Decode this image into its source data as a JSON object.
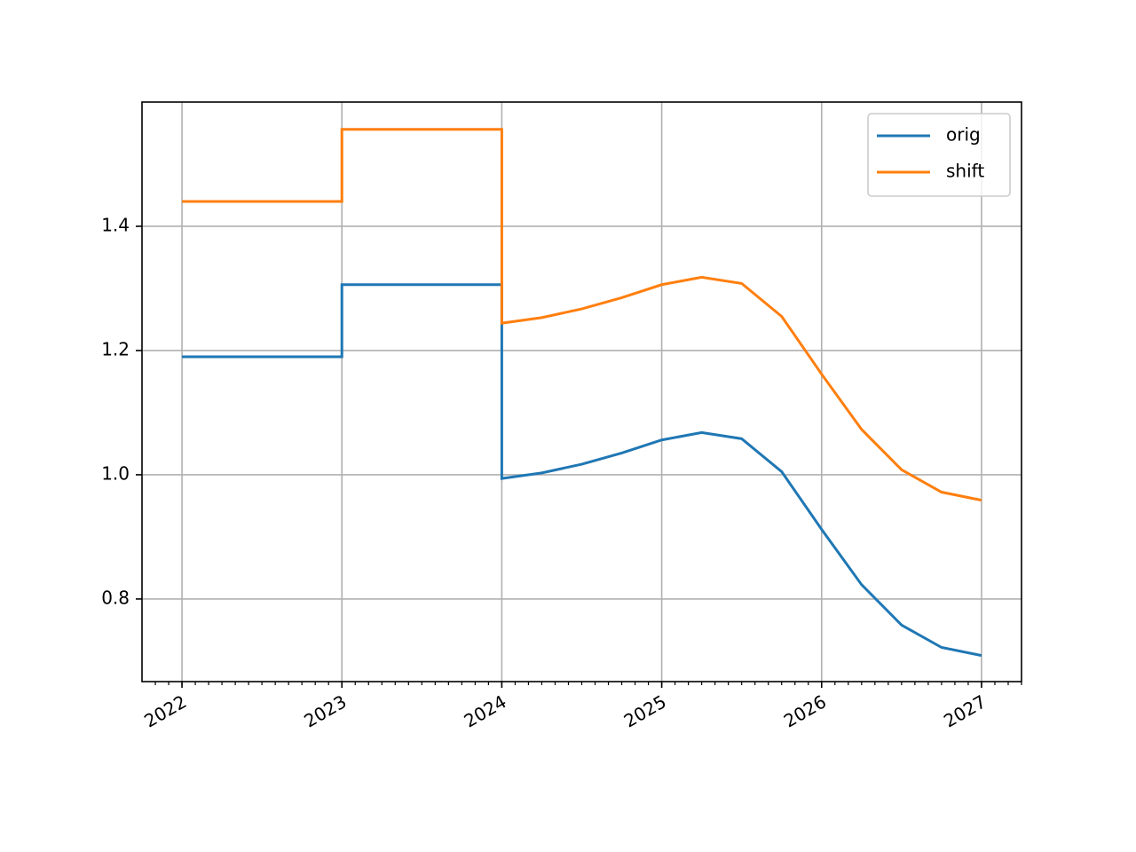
{
  "chart_data": {
    "type": "line",
    "x": [
      2022,
      2023,
      2023,
      2024,
      2024,
      2024.25,
      2024.5,
      2024.75,
      2025,
      2025.25,
      2025.5,
      2025.75,
      2026,
      2026.25,
      2026.5,
      2026.75,
      2027
    ],
    "series": [
      {
        "name": "orig",
        "color": "#1f77b4",
        "values": [
          1.19,
          1.19,
          1.306,
          1.306,
          0.994,
          1.003,
          1.017,
          1.035,
          1.056,
          1.068,
          1.058,
          1.005,
          0.912,
          0.823,
          0.758,
          0.722,
          0.709
        ]
      },
      {
        "name": "shift",
        "color": "#ff7f0e",
        "values": [
          1.44,
          1.44,
          1.556,
          1.556,
          1.244,
          1.253,
          1.267,
          1.285,
          1.306,
          1.318,
          1.308,
          1.255,
          1.162,
          1.073,
          1.008,
          0.972,
          0.959
        ]
      }
    ],
    "xlim": [
      2021.75,
      2027.25
    ],
    "xticks": [
      2022,
      2023,
      2024,
      2025,
      2026,
      2027
    ],
    "ylim": [
      0.667,
      1.6
    ],
    "yticks": [
      0.8,
      {
        "value": 1.0,
        "label": "1.0"
      },
      1.2,
      1.4
    ],
    "grid": true,
    "legend": "upper right"
  }
}
